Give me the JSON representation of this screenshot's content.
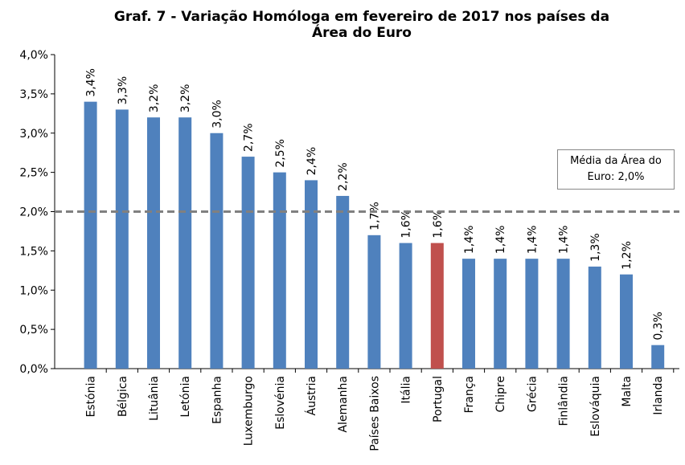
{
  "chart_data": {
    "type": "bar",
    "title": [
      "Graf. 7 - Variação Homóloga em fevereiro de 2017 nos países da",
      "Área do Euro"
    ],
    "categories": [
      "Estónia",
      "Bélgica",
      "Lituânia",
      "Letónia",
      "Espanha",
      "Luxemburgo",
      "Eslovénia",
      "Áustria",
      "Alemanha",
      "Países Baixos",
      "Itália",
      "Portugal",
      "França",
      "Chipre",
      "Grécia",
      "Finlândia",
      "Eslováquia",
      "Malta",
      "Irlanda"
    ],
    "values": [
      3.4,
      3.3,
      3.2,
      3.2,
      3.0,
      2.7,
      2.5,
      2.4,
      2.2,
      1.7,
      1.6,
      1.6,
      1.4,
      1.4,
      1.4,
      1.4,
      1.3,
      1.2,
      0.3
    ],
    "value_labels": [
      "3,4%",
      "3,3%",
      "3,2%",
      "3,2%",
      "3,0%",
      "2,7%",
      "2,5%",
      "2,4%",
      "2,2%",
      "1,7%",
      "1,6%",
      "1,6%",
      "1,4%",
      "1,4%",
      "1,4%",
      "1,4%",
      "1,3%",
      "1,2%",
      "0,3%"
    ],
    "colors": [
      "#4f81bd",
      "#4f81bd",
      "#4f81bd",
      "#4f81bd",
      "#4f81bd",
      "#4f81bd",
      "#4f81bd",
      "#4f81bd",
      "#4f81bd",
      "#4f81bd",
      "#4f81bd",
      "#c0504d",
      "#4f81bd",
      "#4f81bd",
      "#4f81bd",
      "#4f81bd",
      "#4f81bd",
      "#4f81bd",
      "#4f81bd"
    ],
    "ylim": [
      0,
      4.0
    ],
    "yticks": [
      {
        "value": 0,
        "label": "0,0%"
      },
      {
        "value": 0.5,
        "label": "0,5%"
      },
      {
        "value": 1.0,
        "label": "1,0%"
      },
      {
        "value": 1.5,
        "label": "1,5%"
      },
      {
        "value": 2.0,
        "label": "2,0%"
      },
      {
        "value": 2.5,
        "label": "2,5%"
      },
      {
        "value": 3.0,
        "label": "3,0%"
      },
      {
        "value": 3.5,
        "label": "3,5%"
      },
      {
        "value": 4.0,
        "label": "4,0%"
      }
    ],
    "reference_line": {
      "value": 2.0,
      "label": "Média da Área  do Euro: 2,0%",
      "color": "#808080"
    },
    "grid": false
  }
}
